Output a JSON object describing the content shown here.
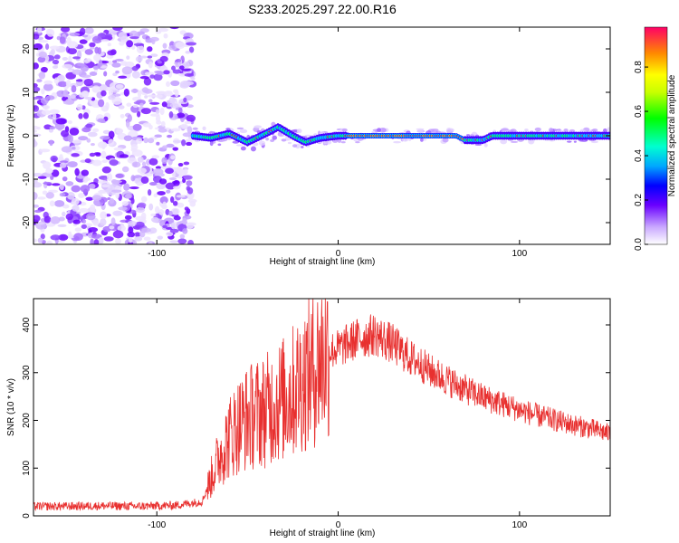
{
  "title": "S233.2025.297.22.00.R16",
  "chart_data": [
    {
      "type": "heatmap",
      "name": "spectrogram",
      "xlabel": "Height of straight line (km)",
      "ylabel": "Frequency (Hz)",
      "xlim": [
        -168,
        150
      ],
      "ylim": [
        -25,
        25
      ],
      "xticks": [
        -100,
        0,
        100
      ],
      "yticks": [
        -20,
        -10,
        0,
        10,
        20
      ],
      "colorbar": {
        "label": "Normalized spectral amplitude",
        "range": [
          0,
          0.98
        ],
        "ticks": [
          0.0,
          0.2,
          0.4,
          0.6,
          0.8
        ]
      },
      "noise_region_x": [
        -168,
        -80
      ],
      "signal_track": {
        "x": [
          -80,
          -70,
          -60,
          -50,
          -40,
          -33,
          -25,
          -18,
          -10,
          0,
          10,
          30,
          50,
          65,
          70,
          80,
          85,
          100,
          120,
          140,
          150
        ],
        "freq": [
          0,
          -0.5,
          0.5,
          -1.5,
          0.5,
          2,
          0,
          -1.5,
          -0.5,
          0,
          0,
          0,
          0,
          0,
          -1,
          -1,
          0,
          0,
          0,
          0,
          0
        ]
      }
    },
    {
      "type": "line",
      "name": "snr",
      "xlabel": "Height of straight line (km)",
      "ylabel": "SNR (10 * v/v)",
      "xlim": [
        -168,
        150
      ],
      "ylim": [
        0,
        455
      ],
      "xticks": [
        -100,
        0,
        100
      ],
      "yticks": [
        0,
        100,
        200,
        300,
        400
      ],
      "color": "#e8302f",
      "series": [
        {
          "name": "SNR",
          "x": [
            -168,
            -150,
            -130,
            -110,
            -90,
            -75,
            -70,
            -65,
            -60,
            -55,
            -50,
            -45,
            -40,
            -35,
            -30,
            -25,
            -20,
            -15,
            -10,
            -5,
            0,
            5,
            10,
            15,
            20,
            25,
            30,
            35,
            40,
            45,
            50,
            60,
            70,
            80,
            90,
            100,
            110,
            120,
            130,
            140,
            150
          ],
          "y": [
            20,
            20,
            21,
            20,
            22,
            30,
            80,
            130,
            165,
            190,
            205,
            215,
            220,
            235,
            245,
            260,
            285,
            300,
            325,
            345,
            350,
            360,
            370,
            375,
            380,
            370,
            360,
            345,
            330,
            320,
            305,
            285,
            265,
            248,
            235,
            222,
            210,
            200,
            190,
            182,
            172
          ]
        }
      ]
    }
  ]
}
